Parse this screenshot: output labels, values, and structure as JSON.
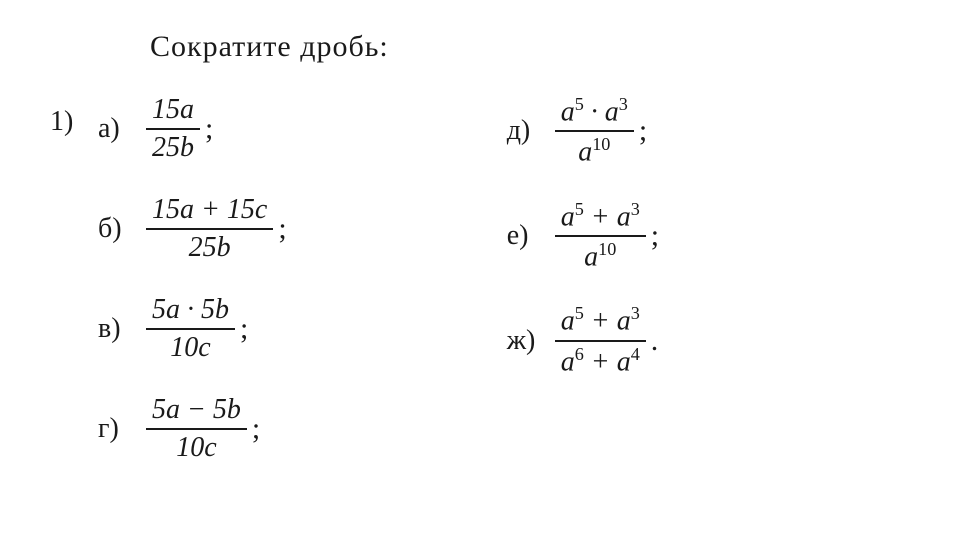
{
  "title": "Сократите дробь:",
  "problem_number": "1)",
  "fonts": {
    "title_fontsize": 30,
    "label_fontsize": 28,
    "math_fontsize": 28
  },
  "colors": {
    "background": "#ffffff",
    "text": "#1a1a1a",
    "fraction_bar": "#1a1a1a"
  },
  "layout": {
    "columns": 2,
    "column_gap": 220,
    "row_gap": 26
  },
  "left_column": [
    {
      "label": "а)",
      "numerator": "15<i>a</i>",
      "denominator": "25<i>b</i>",
      "terminator": ";"
    },
    {
      "label": "б)",
      "numerator": "15<i>a</i> + 15<i>c</i>",
      "denominator": "25<i>b</i>",
      "terminator": ";"
    },
    {
      "label": "в)",
      "numerator": "5<i>a</i> · 5<i>b</i>",
      "denominator": "10<i>c</i>",
      "terminator": ";"
    },
    {
      "label": "г)",
      "numerator": "5<i>a</i> − 5<i>b</i>",
      "denominator": "10<i>c</i>",
      "terminator": ";"
    }
  ],
  "right_column": [
    {
      "label": "д)",
      "numerator": "<i>a</i><sup>5</sup> · <i>a</i><sup>3</sup>",
      "denominator": "<i>a</i><sup>10</sup>",
      "terminator": ";"
    },
    {
      "label": "е)",
      "numerator": "<i>a</i><sup>5</sup> + <i>a</i><sup>3</sup>",
      "denominator": "<i>a</i><sup>10</sup>",
      "terminator": ";"
    },
    {
      "label": "ж)",
      "numerator": "<i>a</i><sup>5</sup> + <i>a</i><sup>3</sup>",
      "denominator": "<i>a</i><sup>6</sup> + <i>a</i><sup>4</sup>",
      "terminator": "."
    }
  ]
}
